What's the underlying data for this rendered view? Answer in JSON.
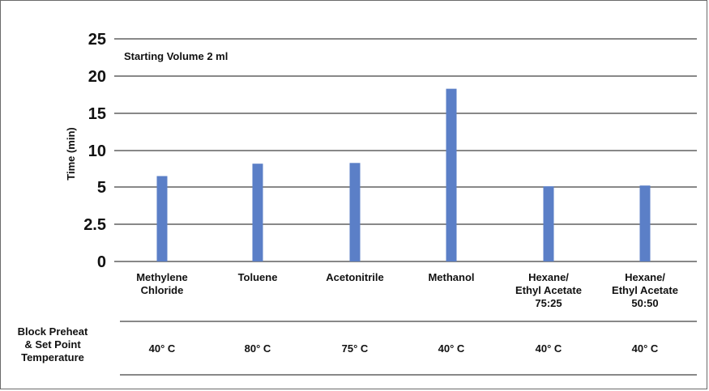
{
  "chart_data": {
    "type": "bar",
    "title": "",
    "annotation": "Starting Volume 2 ml",
    "ylabel": "Time (min)",
    "xlabel": "",
    "y_ticks": [
      "0",
      "2.5",
      "5",
      "10",
      "15",
      "20",
      "25"
    ],
    "categories": [
      [
        "Methylene",
        "Chloride"
      ],
      [
        "Toluene"
      ],
      [
        "Acetonitrile"
      ],
      [
        "Methanol"
      ],
      [
        "Hexane/",
        "Ethyl Acetate",
        "75:25"
      ],
      [
        "Hexane/",
        "Ethyl Acetate",
        "50:50"
      ]
    ],
    "values": [
      6.5,
      8.2,
      8.3,
      18.3,
      5.1,
      5.2
    ],
    "bar_color": "#5b7fc7",
    "grid": true,
    "table": {
      "row_label": [
        "Block Preheat",
        "& Set Point",
        "Temperature"
      ],
      "values": [
        "40° C",
        "80° C",
        "75° C",
        "40° C",
        "40° C",
        "40° C"
      ]
    }
  }
}
